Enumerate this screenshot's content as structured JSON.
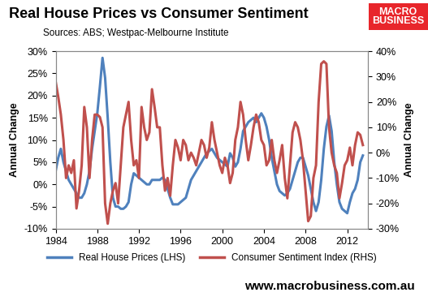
{
  "chart_data": {
    "type": "line",
    "title": "Real House Prices vs Consumer Sentiment",
    "subtitle": "Sources: ABS; Westpac-Melbourne Institute",
    "logo": [
      "MACRO",
      "BUSINESS"
    ],
    "footer": "www.macrobusiness.com.au",
    "y_label": "Annual Change",
    "y2_label": "Annual Change",
    "x": [
      1984,
      1984.25,
      1984.5,
      1984.75,
      1985,
      1985.25,
      1985.5,
      1985.75,
      1986,
      1986.25,
      1986.5,
      1986.75,
      1987,
      1987.25,
      1987.5,
      1987.75,
      1988,
      1988.25,
      1988.5,
      1988.75,
      1989,
      1989.25,
      1989.5,
      1989.75,
      1990,
      1990.25,
      1990.5,
      1990.75,
      1991,
      1991.25,
      1991.5,
      1991.75,
      1992,
      1992.25,
      1992.5,
      1992.75,
      1993,
      1993.25,
      1993.5,
      1993.75,
      1994,
      1994.25,
      1994.5,
      1994.75,
      1995,
      1995.25,
      1995.5,
      1995.75,
      1996,
      1996.25,
      1996.5,
      1996.75,
      1997,
      1997.25,
      1997.5,
      1997.75,
      1998,
      1998.25,
      1998.5,
      1998.75,
      1999,
      1999.25,
      1999.5,
      1999.75,
      2000,
      2000.25,
      2000.5,
      2000.75,
      2001,
      2001.25,
      2001.5,
      2001.75,
      2002,
      2002.25,
      2002.5,
      2002.75,
      2003,
      2003.25,
      2003.5,
      2003.75,
      2004,
      2004.25,
      2004.5,
      2004.75,
      2005,
      2005.25,
      2005.5,
      2005.75,
      2006,
      2006.25,
      2006.5,
      2006.75,
      2007,
      2007.25,
      2007.5,
      2007.75,
      2008,
      2008.25,
      2008.5,
      2008.75,
      2009,
      2009.25,
      2009.5,
      2009.75,
      2010,
      2010.25,
      2010.5,
      2010.75,
      2011,
      2011.25,
      2011.5,
      2011.75,
      2012,
      2012.25,
      2012.5,
      2012.75,
      2013,
      2013.25,
      2013.5
    ],
    "series": [
      {
        "name": "Real House Prices (LHS)",
        "color": "#4f81bd",
        "axis": "y",
        "values": [
          3,
          6,
          8,
          5,
          3,
          1,
          0,
          -1,
          -2,
          -3,
          -3,
          -2,
          0,
          3,
          8,
          12,
          16,
          22,
          28.5,
          24,
          15,
          5,
          -3,
          -5,
          -5,
          -5.5,
          -5.5,
          -5,
          -4,
          0,
          2.5,
          2,
          1.5,
          1,
          0.5,
          0,
          0,
          1,
          1,
          1,
          1,
          1.5,
          1,
          -1,
          -3,
          -4.5,
          -4.5,
          -4.5,
          -4,
          -3.5,
          -3,
          -1,
          1,
          2,
          3,
          4,
          5,
          6,
          7,
          7.5,
          8,
          7,
          6,
          5.5,
          5,
          4.5,
          4,
          7,
          6,
          4,
          5,
          8,
          12,
          13,
          14,
          14.5,
          15,
          14,
          15,
          16,
          15,
          13,
          10,
          6,
          3,
          0,
          -1.5,
          -2,
          -2.5,
          -2,
          -1,
          1,
          3,
          5,
          6,
          6,
          4,
          2,
          -1,
          -4,
          -6,
          -4,
          1,
          8,
          13,
          15.5,
          12,
          5,
          0,
          -4,
          -5.5,
          -6,
          -6.5,
          -4,
          -2,
          -1,
          1,
          5,
          6.5
        ]
      },
      {
        "name": "Consumer Sentiment Index (RHS)",
        "color": "#c0504d",
        "axis": "y2",
        "values": [
          28,
          22,
          15,
          5,
          -10,
          -5,
          -8,
          -3,
          -22,
          -15,
          -5,
          18,
          10,
          -10,
          5,
          15,
          15,
          14,
          10,
          -20,
          -28,
          -20,
          -15,
          -12,
          -20,
          -5,
          10,
          15,
          20,
          5,
          -5,
          -3,
          -10,
          18,
          10,
          5,
          8,
          25,
          18,
          10,
          10,
          -5,
          -15,
          -10,
          -17,
          -5,
          5,
          2,
          -3,
          5,
          3,
          -3,
          0,
          -2,
          -5,
          0,
          5,
          3,
          -2,
          2,
          12,
          5,
          0,
          -5,
          -8,
          -2,
          -5,
          -12,
          -8,
          5,
          10,
          20,
          15,
          5,
          -3,
          3,
          10,
          15,
          12,
          5,
          3,
          -5,
          -3,
          5,
          -3,
          -8,
          -3,
          3,
          -10,
          -18,
          -5,
          8,
          12,
          10,
          5,
          -3,
          -15,
          -27,
          -25,
          -10,
          -5,
          20,
          35,
          36,
          35,
          10,
          0,
          -5,
          -8,
          -18,
          -12,
          -5,
          -3,
          2,
          -5,
          3,
          8,
          7,
          3
        ]
      }
    ],
    "xlim": [
      1984,
      2014
    ],
    "xticks": [
      1984,
      1988,
      1992,
      1996,
      2000,
      2004,
      2008,
      2012
    ],
    "ylim": [
      -10,
      30
    ],
    "yticks": [
      {
        "value": -10,
        "label": "-10%"
      },
      {
        "value": -5,
        "label": "-5%"
      },
      {
        "value": 0,
        "label": "0%"
      },
      {
        "value": 5,
        "label": "5%"
      },
      {
        "value": 10,
        "label": "10%"
      },
      {
        "value": 15,
        "label": "15%"
      },
      {
        "value": 20,
        "label": "20%"
      },
      {
        "value": 25,
        "label": "25%"
      },
      {
        "value": 30,
        "label": "30%"
      }
    ],
    "y2lim": [
      -30,
      40
    ],
    "y2ticks": [
      {
        "value": -30,
        "label": "-30%"
      },
      {
        "value": -20,
        "label": "-20%"
      },
      {
        "value": -10,
        "label": "-10%"
      },
      {
        "value": 0,
        "label": "0%"
      },
      {
        "value": 10,
        "label": "10%"
      },
      {
        "value": 20,
        "label": "20%"
      },
      {
        "value": 30,
        "label": "30%"
      },
      {
        "value": 40,
        "label": "40%"
      }
    ],
    "grid": false,
    "legend": "bottom"
  }
}
